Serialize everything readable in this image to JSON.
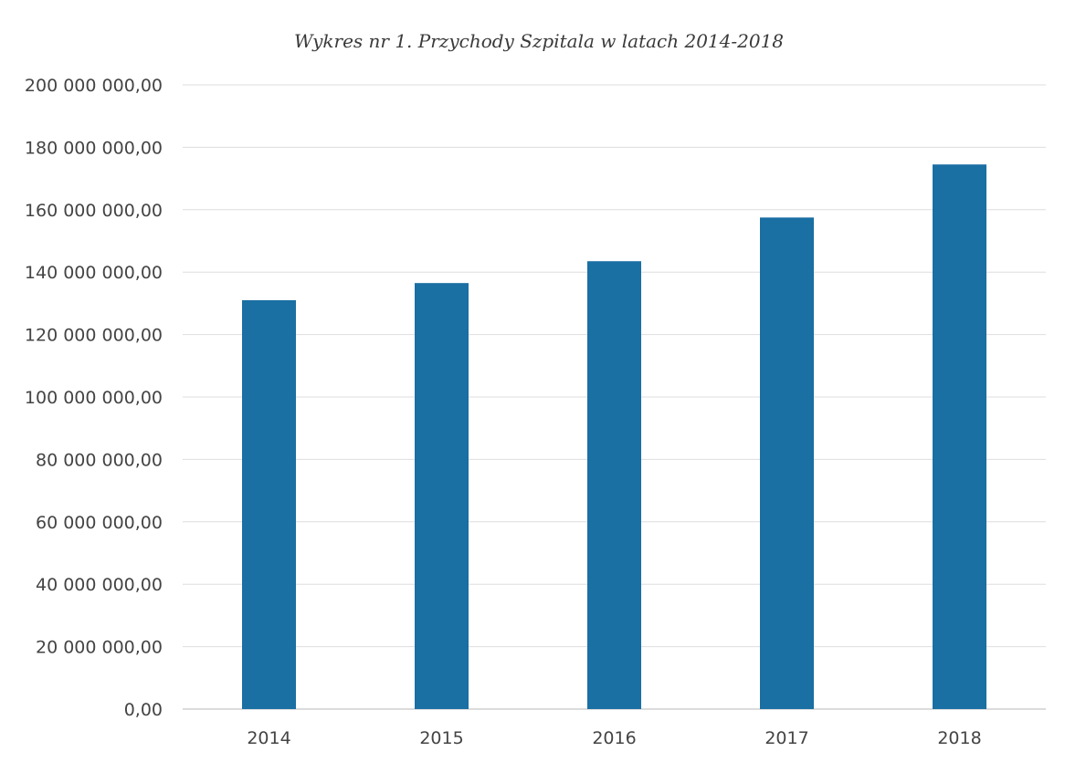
{
  "chart_data": {
    "type": "bar",
    "title": "Wykres nr 1. Przychody Szpitala w latach 2014-2018",
    "xlabel": "",
    "ylabel": "",
    "categories": [
      "2014",
      "2015",
      "2016",
      "2017",
      "2018"
    ],
    "values": [
      131000000,
      136500000,
      143500000,
      157500000,
      174500000
    ],
    "ylim": [
      0,
      200000000
    ],
    "yticks": [
      0,
      20000000,
      40000000,
      60000000,
      80000000,
      100000000,
      120000000,
      140000000,
      160000000,
      180000000,
      200000000
    ],
    "ytick_labels": [
      "0,00",
      "20 000 000,00",
      "40 000 000,00",
      "60 000 000,00",
      "80 000 000,00",
      "100 000 000,00",
      "120 000 000,00",
      "140 000 000,00",
      "160 000 000,00",
      "180 000 000,00",
      "200 000 000,00"
    ],
    "grid": true,
    "legend": "none",
    "bar_color": "#1a6fa3"
  }
}
